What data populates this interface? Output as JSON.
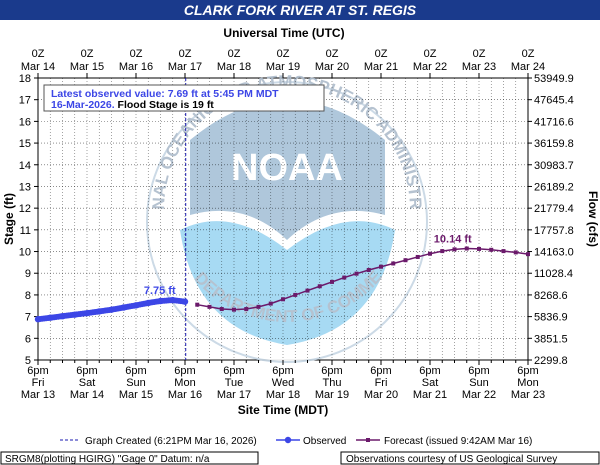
{
  "header": {
    "title": "CLARK FORK RIVER AT ST. REGIS",
    "banner_color": "#1a3a8c"
  },
  "chart_data": {
    "type": "line",
    "title": "CLARK FORK RIVER AT ST. REGIS",
    "top_axis_label": "Universal Time (UTC)",
    "xlabel": "Site Time (MDT)",
    "ylabel_left": "Stage (ft)",
    "ylabel_right": "Flow (cfs)",
    "ylim": [
      5,
      18
    ],
    "left_ticks": [
      "5",
      "6",
      "7",
      "8",
      "9",
      "10",
      "11",
      "12",
      "13",
      "14",
      "15",
      "16",
      "17",
      "18"
    ],
    "right_ticks": [
      "2299.8",
      "3851.5",
      "5836.9",
      "8268.6",
      "11028.4",
      "14163.0",
      "17757.8",
      "21779.4",
      "26189.2",
      "30983.7",
      "36159.8",
      "41716.6",
      "47645.4",
      "53949.9"
    ],
    "top_ticks": [
      [
        "0Z",
        "Mar 14"
      ],
      [
        "0Z",
        "Mar 15"
      ],
      [
        "0Z",
        "Mar 16"
      ],
      [
        "0Z",
        "Mar 17"
      ],
      [
        "0Z",
        "Mar 18"
      ],
      [
        "0Z",
        "Mar 19"
      ],
      [
        "0Z",
        "Mar 20"
      ],
      [
        "0Z",
        "Mar 21"
      ],
      [
        "0Z",
        "Mar 22"
      ],
      [
        "0Z",
        "Mar 23"
      ],
      [
        "0Z",
        "Mar 24"
      ]
    ],
    "bottom_ticks": [
      [
        "6pm",
        "Fri",
        "Mar 13"
      ],
      [
        "6pm",
        "Sat",
        "Mar 14"
      ],
      [
        "6pm",
        "Sun",
        "Mar 15"
      ],
      [
        "6pm",
        "Mon",
        "Mar 16"
      ],
      [
        "6pm",
        "Tue",
        "Mar 17"
      ],
      [
        "6pm",
        "Wed",
        "Mar 18"
      ],
      [
        "6pm",
        "Thu",
        "Mar 19"
      ],
      [
        "6pm",
        "Fri",
        "Mar 20"
      ],
      [
        "6pm",
        "Sat",
        "Mar 21"
      ],
      [
        "6pm",
        "Sun",
        "Mar 22"
      ],
      [
        "6pm",
        "Mon",
        "Mar 23"
      ]
    ],
    "observed": {
      "name": "Observed",
      "color": "#3c46e6",
      "x_mdt": [
        "Mar 13 18:00",
        "Mar 14 00:00",
        "Mar 14 06:00",
        "Mar 14 12:00",
        "Mar 14 18:00",
        "Mar 15 00:00",
        "Mar 15 06:00",
        "Mar 15 12:00",
        "Mar 15 18:00",
        "Mar 16 00:00",
        "Mar 16 06:00",
        "Mar 16 12:00",
        "Mar 16 18:00"
      ],
      "y": [
        6.88,
        6.95,
        7.02,
        7.09,
        7.16,
        7.24,
        7.32,
        7.42,
        7.52,
        7.63,
        7.72,
        7.76,
        7.69
      ]
    },
    "forecast": {
      "name": "Forecast (issued 9:42AM Mar 16)",
      "color": "#6b1a6b",
      "x_mdt": [
        "Mar 17 00:00",
        "Mar 17 06:00",
        "Mar 17 12:00",
        "Mar 17 18:00",
        "Mar 18 00:00",
        "Mar 18 06:00",
        "Mar 18 12:00",
        "Mar 18 18:00",
        "Mar 19 00:00",
        "Mar 19 06:00",
        "Mar 19 12:00",
        "Mar 19 18:00",
        "Mar 20 00:00",
        "Mar 20 06:00",
        "Mar 20 12:00",
        "Mar 20 18:00",
        "Mar 21 00:00",
        "Mar 21 06:00",
        "Mar 21 12:00",
        "Mar 21 18:00",
        "Mar 22 00:00",
        "Mar 22 06:00",
        "Mar 22 12:00",
        "Mar 22 18:00",
        "Mar 23 00:00",
        "Mar 23 06:00",
        "Mar 23 12:00",
        "Mar 23 18:00"
      ],
      "y": [
        7.55,
        7.45,
        7.35,
        7.32,
        7.35,
        7.45,
        7.6,
        7.8,
        8.0,
        8.2,
        8.4,
        8.6,
        8.8,
        8.98,
        9.15,
        9.3,
        9.45,
        9.6,
        9.75,
        9.9,
        10.02,
        10.1,
        10.14,
        10.12,
        10.08,
        10.02,
        9.96,
        9.88
      ]
    },
    "graph_created_x_mdt": "Mar 16 18:21",
    "peak_labels": {
      "observed": "7.75 ft",
      "forecast": "10.14 ft"
    },
    "info_box": {
      "line1": "Latest observed value: 7.69 ft at 5:45 PM MDT",
      "line2_date": "16-Mar-2026.",
      "line2_rest": " Flood Stage is 19 ft"
    },
    "legend": [
      {
        "label": "Graph Created (6:21PM Mar 16, 2026)",
        "symbol": "dashed-line",
        "color": "#1a1ab0"
      },
      {
        "label": "Observed",
        "symbol": "circle-line",
        "color": "#3c46e6"
      },
      {
        "label": "Forecast (issued 9:42AM Mar 16)",
        "symbol": "square-line",
        "color": "#6b1a6b"
      }
    ],
    "grid": true
  },
  "footer": {
    "left": "SRGM8(plotting HGIRG) \"Gage 0\" Datum: n/a",
    "right": "Observations courtesy of US Geological Survey"
  },
  "watermark": {
    "center_text": "NOAA",
    "ring_top": "NATIONAL OCEANIC AND ATMOSPHERIC ADMINISTRATION",
    "ring_bottom": "U.S. DEPARTMENT OF COMMERCE"
  }
}
